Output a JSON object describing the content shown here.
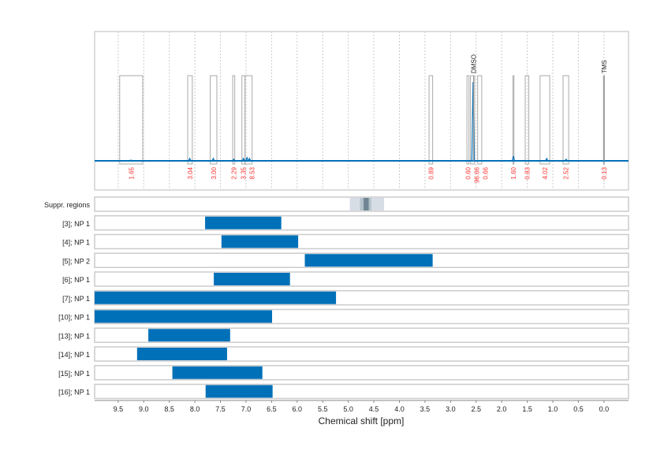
{
  "chart_data": {
    "type": "nmr-spectrum-with-ranges",
    "xlabel": "Chemical shift [ppm]",
    "xlim": [
      9.96,
      -0.48
    ],
    "x_ticks": [
      "9.5",
      "9.0",
      "8.5",
      "8.0",
      "7.5",
      "7.0",
      "6.5",
      "6.0",
      "5.5",
      "5.0",
      "4.5",
      "4.0",
      "3.5",
      "3.0",
      "2.5",
      "2.0",
      "1.5",
      "1.0",
      "0.5",
      "0.0"
    ],
    "grid": true,
    "colors": {
      "spectrum": "#0070b8",
      "integral_label": "#ff3333",
      "bar": "#0070b8",
      "suppr_light": "#d6dde4",
      "suppr_mid": "#b4c2cc",
      "suppr_dark": "#6f8593"
    },
    "peak_annotations": [
      {
        "label": "DMSO",
        "ppm": 2.55
      },
      {
        "label": "TMS",
        "ppm": 0.0
      }
    ],
    "integrals": [
      {
        "from": 9.47,
        "to": 9.02,
        "value": "1.65"
      },
      {
        "from": 8.14,
        "to": 8.05,
        "value": "3.04"
      },
      {
        "from": 7.7,
        "to": 7.57,
        "value": "3.00"
      },
      {
        "from": 7.26,
        "to": 7.22,
        "value": "2.29"
      },
      {
        "from": 7.08,
        "to": 7.02,
        "value": "3.35"
      },
      {
        "from": 7.02,
        "to": 6.88,
        "value": "8.53"
      },
      {
        "from": 3.42,
        "to": 3.35,
        "value": "0.89"
      },
      {
        "from": 2.68,
        "to": 2.64,
        "value": "0.60"
      },
      {
        "from": 2.61,
        "to": 2.53,
        "value": "96.66"
      },
      {
        "from": 2.47,
        "to": 2.39,
        "value": "0.66"
      },
      {
        "from": 1.78,
        "to": 1.76,
        "value": "1.60"
      },
      {
        "from": 1.54,
        "to": 1.47,
        "value": "0.83"
      },
      {
        "from": 1.25,
        "to": 1.06,
        "value": "4.02"
      },
      {
        "from": 0.8,
        "to": 0.69,
        "value": "2.52"
      },
      {
        "from": 0.01,
        "to": -0.01,
        "value": "0.13"
      }
    ],
    "peaks": [
      {
        "ppm": 9.25,
        "height": 0.01
      },
      {
        "ppm": 8.1,
        "height": 0.03
      },
      {
        "ppm": 7.64,
        "height": 0.03
      },
      {
        "ppm": 7.24,
        "height": 0.02
      },
      {
        "ppm": 7.05,
        "height": 0.03
      },
      {
        "ppm": 6.98,
        "height": 0.04
      },
      {
        "ppm": 6.93,
        "height": 0.03
      },
      {
        "ppm": 2.56,
        "height": 1.0
      },
      {
        "ppm": 1.77,
        "height": 0.06
      },
      {
        "ppm": 1.12,
        "height": 0.03
      },
      {
        "ppm": 0.74,
        "height": 0.02
      }
    ],
    "suppressed_regions": {
      "label": "Suppr. regions",
      "bands": [
        {
          "from": 4.97,
          "to": 4.3,
          "level": "light"
        },
        {
          "from": 4.77,
          "to": 4.55,
          "level": "mid"
        },
        {
          "from": 4.7,
          "to": 4.6,
          "level": "dark"
        }
      ]
    },
    "ranges": [
      {
        "label": "[3]; NP 1",
        "from": 7.8,
        "to": 6.31
      },
      {
        "label": "[4]; NP 1",
        "from": 7.48,
        "to": 5.98
      },
      {
        "label": "[5]; NP 2",
        "from": 5.85,
        "to": 3.35
      },
      {
        "label": "[6]; NP 1",
        "from": 7.63,
        "to": 6.14
      },
      {
        "label": "[7]; NP 1",
        "from": 9.96,
        "to": 5.24
      },
      {
        "label": "[10]; NP 1",
        "from": 9.96,
        "to": 6.49
      },
      {
        "label": "[13]; NP 1",
        "from": 8.91,
        "to": 7.31
      },
      {
        "label": "[14]; NP 1",
        "from": 9.13,
        "to": 7.37
      },
      {
        "label": "[15]; NP 1",
        "from": 8.44,
        "to": 6.68
      },
      {
        "label": "[16]; NP 1",
        "from": 7.79,
        "to": 6.48
      }
    ]
  }
}
